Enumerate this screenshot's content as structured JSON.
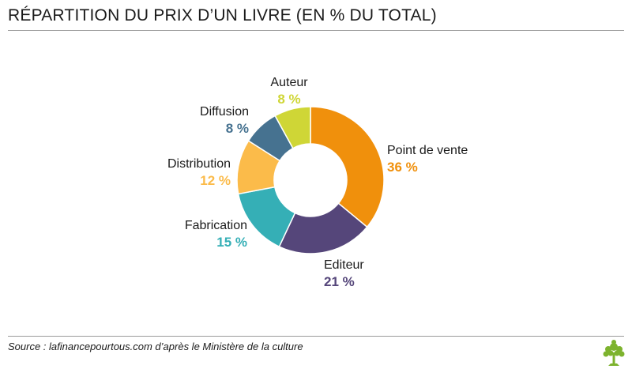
{
  "title": "RÉPARTITION DU PRIX D’UN LIVRE (EN % DU TOTAL)",
  "source": "Source : lafinancepourtous.com d’après le Ministère de la culture",
  "chart_data": {
    "type": "pie",
    "donut": true,
    "title": "RÉPARTITION DU PRIX D’UN LIVRE (EN % DU TOTAL)",
    "slices": [
      {
        "label": "Point de vente",
        "value": 36,
        "value_label": "36 %",
        "color": "#f0900c"
      },
      {
        "label": "Editeur",
        "value": 21,
        "value_label": "21 %",
        "color": "#55467a"
      },
      {
        "label": "Fabrication",
        "value": 15,
        "value_label": "15 %",
        "color": "#35afb6"
      },
      {
        "label": "Distribution",
        "value": 12,
        "value_label": "12 %",
        "color": "#fbbb4a"
      },
      {
        "label": "Diffusion",
        "value": 8,
        "value_label": "8 %",
        "color": "#467290"
      },
      {
        "label": "Auteur",
        "value": 8,
        "value_label": "8 %",
        "color": "#cfd636"
      }
    ]
  },
  "logo_icon": "tree-icon"
}
